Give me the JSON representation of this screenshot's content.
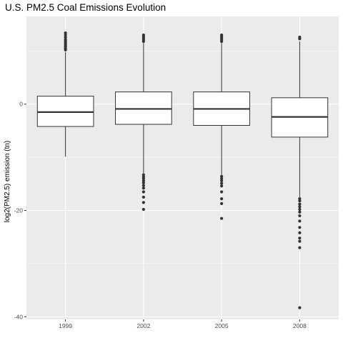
{
  "chart_data": {
    "type": "box",
    "title": "U.S. PM2.5 Coal Emissions Evolution",
    "xlabel": "",
    "ylabel": "log2(PM2.5) emission (tn)",
    "ylim": [
      -40.5,
      16.5
    ],
    "yticks": [
      -40,
      -20,
      0
    ],
    "categories": [
      "1999",
      "2002",
      "2005",
      "2008"
    ],
    "grid": true,
    "background": "#ebebeb",
    "grid_color": "#ffffff",
    "box_fill": "#ffffff",
    "line_color": "#333333",
    "boxes": [
      {
        "category": "1999",
        "q1": -4.2,
        "median": -1.5,
        "q3": 1.5,
        "whisker_low": -9.9,
        "whisker_high": 9.8,
        "outliers": [
          10.2,
          10.5,
          10.8,
          11.0,
          11.3,
          11.6,
          11.9,
          12.2,
          12.6,
          13.0,
          13.4
        ]
      },
      {
        "category": "2002",
        "q1": -3.8,
        "median": -0.9,
        "q3": 2.3,
        "whisker_low": -13.0,
        "whisker_high": 11.5,
        "outliers": [
          11.8,
          12.1,
          12.4,
          12.7,
          13.0,
          -13.3,
          -13.7,
          -14.0,
          -14.4,
          -14.8,
          -15.3,
          -15.8,
          -16.5,
          -17.5,
          -18.5,
          -19.8
        ]
      },
      {
        "category": "2005",
        "q1": -4.0,
        "median": -0.9,
        "q3": 2.3,
        "whisker_low": -13.3,
        "whisker_high": 11.5,
        "outliers": [
          11.8,
          12.1,
          12.4,
          12.7,
          13.0,
          -13.6,
          -14.0,
          -14.4,
          -14.9,
          -15.4,
          -16.5,
          -17.8,
          -18.7,
          -21.5
        ]
      },
      {
        "category": "2008",
        "q1": -6.2,
        "median": -2.4,
        "q3": 1.2,
        "whisker_low": -17.5,
        "whisker_high": 11.8,
        "outliers": [
          12.3,
          12.6,
          -17.8,
          -18.2,
          -18.8,
          -19.3,
          -19.8,
          -20.3,
          -21.0,
          -22.0,
          -23.2,
          -24.2,
          -25.2,
          -25.8,
          -27.0,
          -38.3
        ]
      }
    ]
  }
}
